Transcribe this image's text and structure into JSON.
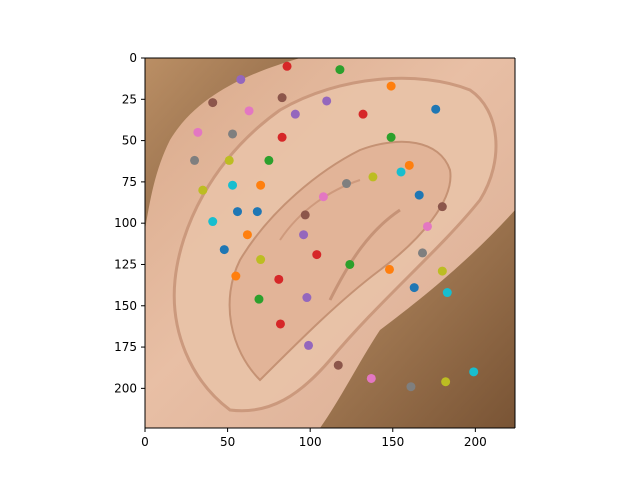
{
  "chart_data": {
    "type": "scatter",
    "background": "image of human ear with hair",
    "xlim": [
      0,
      224
    ],
    "ylim": [
      224,
      0
    ],
    "y_axis_inverted": true,
    "xticks": [
      0,
      50,
      100,
      150,
      200
    ],
    "yticks": [
      0,
      25,
      50,
      75,
      100,
      125,
      150,
      175,
      200
    ],
    "xtick_labels": [
      "0",
      "50",
      "100",
      "150",
      "200"
    ],
    "ytick_labels": [
      "0",
      "25",
      "50",
      "75",
      "100",
      "125",
      "150",
      "175",
      "200"
    ],
    "grid": false,
    "legend": false,
    "palette": [
      "#1f77b4",
      "#ff7f0e",
      "#2ca02c",
      "#d62728",
      "#9467bd",
      "#8c564b",
      "#e377c2",
      "#7f7f7f",
      "#bcbd22",
      "#17becf"
    ],
    "points": [
      {
        "x": 86,
        "y": 5,
        "color": "#d62728"
      },
      {
        "x": 118,
        "y": 7,
        "color": "#2ca02c"
      },
      {
        "x": 58,
        "y": 13,
        "color": "#9467bd"
      },
      {
        "x": 149,
        "y": 17,
        "color": "#ff7f0e"
      },
      {
        "x": 83,
        "y": 24,
        "color": "#8c564b"
      },
      {
        "x": 110,
        "y": 26,
        "color": "#9467bd"
      },
      {
        "x": 41,
        "y": 27,
        "color": "#8c564b"
      },
      {
        "x": 176,
        "y": 31,
        "color": "#1f77b4"
      },
      {
        "x": 63,
        "y": 32,
        "color": "#e377c2"
      },
      {
        "x": 91,
        "y": 34,
        "color": "#9467bd"
      },
      {
        "x": 132,
        "y": 34,
        "color": "#d62728"
      },
      {
        "x": 32,
        "y": 45,
        "color": "#e377c2"
      },
      {
        "x": 53,
        "y": 46,
        "color": "#7f7f7f"
      },
      {
        "x": 83,
        "y": 48,
        "color": "#d62728"
      },
      {
        "x": 149,
        "y": 48,
        "color": "#2ca02c"
      },
      {
        "x": 30,
        "y": 62,
        "color": "#7f7f7f"
      },
      {
        "x": 51,
        "y": 62,
        "color": "#bcbd22"
      },
      {
        "x": 75,
        "y": 62,
        "color": "#2ca02c"
      },
      {
        "x": 160,
        "y": 65,
        "color": "#ff7f0e"
      },
      {
        "x": 155,
        "y": 69,
        "color": "#17becf"
      },
      {
        "x": 138,
        "y": 72,
        "color": "#bcbd22"
      },
      {
        "x": 122,
        "y": 76,
        "color": "#7f7f7f"
      },
      {
        "x": 53,
        "y": 77,
        "color": "#17becf"
      },
      {
        "x": 70,
        "y": 77,
        "color": "#ff7f0e"
      },
      {
        "x": 35,
        "y": 80,
        "color": "#bcbd22"
      },
      {
        "x": 166,
        "y": 83,
        "color": "#1f77b4"
      },
      {
        "x": 108,
        "y": 84,
        "color": "#e377c2"
      },
      {
        "x": 180,
        "y": 90,
        "color": "#8c564b"
      },
      {
        "x": 56,
        "y": 93,
        "color": "#1f77b4"
      },
      {
        "x": 68,
        "y": 93,
        "color": "#1f77b4"
      },
      {
        "x": 97,
        "y": 95,
        "color": "#8c564b"
      },
      {
        "x": 41,
        "y": 99,
        "color": "#17becf"
      },
      {
        "x": 171,
        "y": 102,
        "color": "#e377c2"
      },
      {
        "x": 62,
        "y": 107,
        "color": "#ff7f0e"
      },
      {
        "x": 96,
        "y": 107,
        "color": "#9467bd"
      },
      {
        "x": 48,
        "y": 116,
        "color": "#1f77b4"
      },
      {
        "x": 168,
        "y": 118,
        "color": "#7f7f7f"
      },
      {
        "x": 104,
        "y": 119,
        "color": "#d62728"
      },
      {
        "x": 70,
        "y": 122,
        "color": "#bcbd22"
      },
      {
        "x": 124,
        "y": 125,
        "color": "#2ca02c"
      },
      {
        "x": 148,
        "y": 128,
        "color": "#ff7f0e"
      },
      {
        "x": 180,
        "y": 129,
        "color": "#bcbd22"
      },
      {
        "x": 55,
        "y": 132,
        "color": "#ff7f0e"
      },
      {
        "x": 81,
        "y": 134,
        "color": "#d62728"
      },
      {
        "x": 163,
        "y": 139,
        "color": "#1f77b4"
      },
      {
        "x": 183,
        "y": 142,
        "color": "#17becf"
      },
      {
        "x": 98,
        "y": 145,
        "color": "#9467bd"
      },
      {
        "x": 69,
        "y": 146,
        "color": "#2ca02c"
      },
      {
        "x": 82,
        "y": 161,
        "color": "#d62728"
      },
      {
        "x": 99,
        "y": 174,
        "color": "#9467bd"
      },
      {
        "x": 117,
        "y": 186,
        "color": "#8c564b"
      },
      {
        "x": 199,
        "y": 190,
        "color": "#17becf"
      },
      {
        "x": 137,
        "y": 194,
        "color": "#e377c2"
      },
      {
        "x": 182,
        "y": 196,
        "color": "#bcbd22"
      },
      {
        "x": 161,
        "y": 199,
        "color": "#7f7f7f"
      }
    ]
  }
}
